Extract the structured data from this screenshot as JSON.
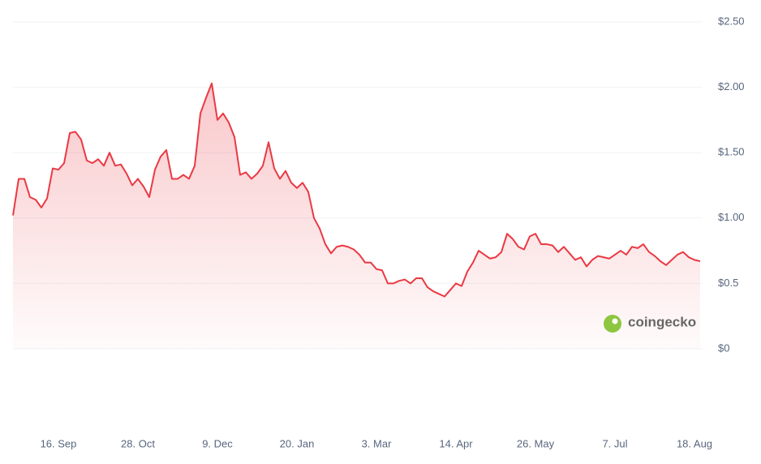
{
  "chart_data": {
    "type": "line",
    "categories": [
      null,
      null,
      null,
      null,
      null,
      null,
      null,
      null,
      "16. Sep",
      null,
      null,
      null,
      null,
      null,
      null,
      null,
      null,
      null,
      null,
      null,
      null,
      null,
      "28. Oct",
      null,
      null,
      null,
      null,
      null,
      null,
      null,
      null,
      null,
      null,
      null,
      null,
      null,
      "9. Dec",
      null,
      null,
      null,
      null,
      null,
      null,
      null,
      null,
      null,
      null,
      null,
      null,
      null,
      "20. Jan",
      null,
      null,
      null,
      null,
      null,
      null,
      null,
      null,
      null,
      null,
      null,
      null,
      null,
      "3. Mar",
      null,
      null,
      null,
      null,
      null,
      null,
      null,
      null,
      null,
      null,
      null,
      null,
      null,
      "14. Apr",
      null,
      null,
      null,
      null,
      null,
      null,
      null,
      null,
      null,
      null,
      null,
      null,
      null,
      "26. May",
      null,
      null,
      null,
      null,
      null,
      null,
      null,
      null,
      null,
      null,
      null,
      null,
      null,
      "7. Jul",
      null,
      null,
      null,
      null,
      null,
      null,
      null,
      null,
      null,
      null,
      null,
      null,
      null,
      "18. Aug",
      null
    ],
    "series": [
      {
        "color": "#ea3943",
        "values": [
          1.02,
          1.3,
          1.3,
          1.16,
          1.14,
          1.08,
          1.15,
          1.38,
          1.37,
          1.42,
          1.65,
          1.66,
          1.6,
          1.44,
          1.42,
          1.45,
          1.4,
          1.5,
          1.4,
          1.41,
          1.34,
          1.25,
          1.3,
          1.24,
          1.16,
          1.37,
          1.47,
          1.52,
          1.3,
          1.3,
          1.33,
          1.3,
          1.4,
          1.8,
          1.92,
          2.03,
          1.75,
          1.8,
          1.73,
          1.62,
          1.33,
          1.35,
          1.3,
          1.34,
          1.4,
          1.58,
          1.38,
          1.3,
          1.36,
          1.27,
          1.23,
          1.27,
          1.2,
          1.0,
          0.92,
          0.8,
          0.73,
          0.78,
          0.79,
          0.78,
          0.76,
          0.72,
          0.66,
          0.66,
          0.61,
          0.6,
          0.5,
          0.5,
          0.52,
          0.53,
          0.5,
          0.54,
          0.54,
          0.47,
          0.44,
          0.42,
          0.4,
          0.45,
          0.5,
          0.48,
          0.59,
          0.66,
          0.75,
          0.72,
          0.69,
          0.7,
          0.74,
          0.88,
          0.84,
          0.78,
          0.76,
          0.86,
          0.88,
          0.8,
          0.8,
          0.79,
          0.74,
          0.78,
          0.73,
          0.68,
          0.7,
          0.63,
          0.68,
          0.71,
          0.7,
          0.69,
          0.72,
          0.75,
          0.72,
          0.78,
          0.77,
          0.8,
          0.74,
          0.71,
          0.67,
          0.64,
          0.68,
          0.72,
          0.74,
          0.7,
          0.68,
          0.67
        ]
      }
    ],
    "ylim": [
      0,
      2.5
    ],
    "yticks": [
      {
        "value": 0,
        "label": "$0"
      },
      {
        "value": 0.5,
        "label": "$0.5"
      },
      {
        "value": 1,
        "label": "$1.00"
      },
      {
        "value": 1.5,
        "label": "$1.50"
      },
      {
        "value": 2,
        "label": "$2.00"
      },
      {
        "value": 2.5,
        "label": "$2.50"
      }
    ],
    "grid": true,
    "watermark": "coingecko"
  }
}
